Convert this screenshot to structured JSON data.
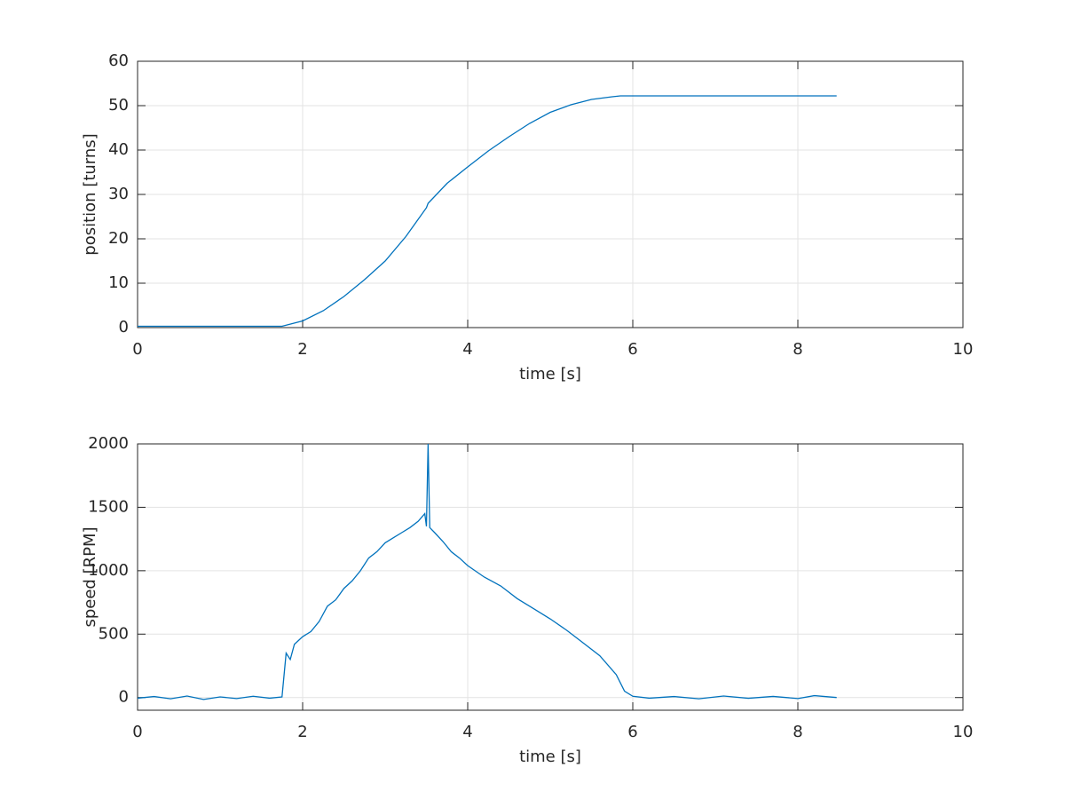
{
  "chart_data": [
    {
      "type": "line",
      "xlabel": "time [s]",
      "ylabel": "position [turns]",
      "color": "#0072bd",
      "grid": true,
      "xlim": [
        0,
        10
      ],
      "xticks": [
        0,
        2,
        4,
        6,
        8,
        10
      ],
      "ylim": [
        0,
        60
      ],
      "yticks": [
        0,
        10,
        20,
        30,
        40,
        50,
        60
      ],
      "x": [
        0,
        0.5,
        1.0,
        1.5,
        1.75,
        2.0,
        2.25,
        2.5,
        2.75,
        3.0,
        3.25,
        3.5,
        3.52,
        3.75,
        4.0,
        4.25,
        4.5,
        4.75,
        5.0,
        5.25,
        5.5,
        5.75,
        5.85,
        6.5,
        7.5,
        8.47
      ],
      "values": [
        0.3,
        0.3,
        0.3,
        0.3,
        0.3,
        1.5,
        3.8,
        7,
        10.8,
        15,
        20.5,
        27,
        28,
        32.5,
        36.2,
        39.8,
        43,
        46,
        48.5,
        50.2,
        51.4,
        52,
        52.2,
        52.2,
        52.2,
        52.2
      ]
    },
    {
      "type": "line",
      "xlabel": "time [s]",
      "ylabel": "speed [RPM]",
      "color": "#0072bd",
      "grid": true,
      "xlim": [
        0,
        10
      ],
      "xticks": [
        0,
        2,
        4,
        6,
        8,
        10
      ],
      "ylim": [
        -100,
        2000
      ],
      "yticks": [
        0,
        500,
        1000,
        1500,
        2000
      ],
      "x": [
        0,
        0.2,
        0.4,
        0.6,
        0.8,
        1.0,
        1.2,
        1.4,
        1.6,
        1.75,
        1.8,
        1.85,
        1.9,
        2.0,
        2.1,
        2.2,
        2.3,
        2.4,
        2.5,
        2.6,
        2.7,
        2.8,
        2.9,
        3.0,
        3.1,
        3.2,
        3.3,
        3.4,
        3.48,
        3.5,
        3.52,
        3.54,
        3.6,
        3.7,
        3.8,
        3.9,
        4.0,
        4.2,
        4.4,
        4.6,
        4.8,
        5.0,
        5.2,
        5.4,
        5.6,
        5.8,
        5.9,
        6.0,
        6.2,
        6.5,
        6.8,
        7.1,
        7.4,
        7.7,
        8.0,
        8.2,
        8.47
      ],
      "values": [
        -5,
        8,
        -10,
        12,
        -15,
        5,
        -8,
        10,
        -5,
        5,
        350,
        300,
        420,
        480,
        520,
        600,
        720,
        770,
        860,
        920,
        1000,
        1100,
        1150,
        1220,
        1260,
        1300,
        1340,
        1390,
        1450,
        1350,
        2000,
        1340,
        1300,
        1230,
        1150,
        1100,
        1040,
        950,
        880,
        780,
        700,
        620,
        530,
        430,
        330,
        180,
        50,
        10,
        -5,
        8,
        -10,
        12,
        -6,
        9,
        -8,
        15,
        0
      ]
    }
  ]
}
